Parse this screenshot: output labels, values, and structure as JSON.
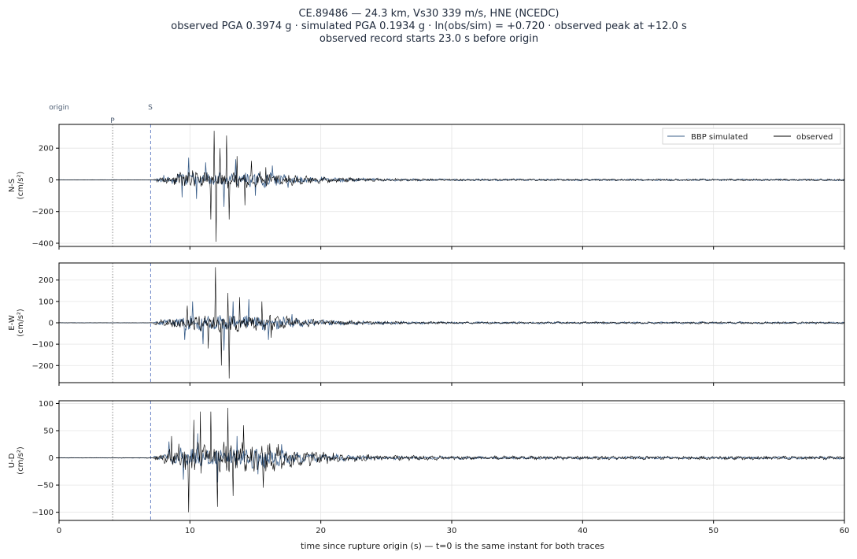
{
  "header": {
    "title_line1": "CE.89486  —  24.3 km, Vs30 339 m/s, HNE (NCEDC)",
    "title_line2": "observed PGA 0.3974 g   ·   simulated PGA 0.1934 g   ·   ln(obs/sim) = +0.720   ·   observed peak at +12.0 s",
    "title_line3": "observed record starts 23.0 s before origin"
  },
  "markers": {
    "origin_label": "origin",
    "p_label": "P",
    "s_label": "S",
    "origin_t": 0,
    "p_t": 4.1,
    "s_t": 7.0
  },
  "legend": {
    "simulated": "BBP simulated",
    "observed": "observed"
  },
  "colors": {
    "simulated": "#3b5f8a",
    "observed": "#000000",
    "p_line": "#888888",
    "s_line": "#6d86c7",
    "grid": "#e4e4e4"
  },
  "xaxis": {
    "label": "time since rupture origin (s)   —   t=0 is the same instant for both traces"
  },
  "chart_data": [
    {
      "type": "line",
      "component": "N-S",
      "ylabel": "N-S\n(cm/s²)",
      "xlim": [
        0,
        60
      ],
      "ylim": [
        -420,
        350
      ],
      "yticks": [
        200,
        0,
        -200,
        -400
      ],
      "xticks": [
        0,
        10,
        20,
        30,
        40,
        50,
        60
      ],
      "series": [
        {
          "name": "BBP simulated",
          "peaks": [
            [
              8,
              30
            ],
            [
              9.4,
              -110
            ],
            [
              9.9,
              140
            ],
            [
              10.5,
              -120
            ],
            [
              11.2,
              110
            ],
            [
              12.6,
              -170
            ],
            [
              13.5,
              130
            ],
            [
              15,
              -100
            ],
            [
              16.3,
              90
            ],
            [
              17.5,
              -50
            ]
          ],
          "noise_scale": 35
        },
        {
          "name": "observed",
          "peaks": [
            [
              10.2,
              60
            ],
            [
              11.6,
              -250
            ],
            [
              11.85,
              310
            ],
            [
              12.0,
              -390
            ],
            [
              12.3,
              200
            ],
            [
              12.8,
              280
            ],
            [
              13.0,
              -250
            ],
            [
              13.6,
              150
            ],
            [
              14.2,
              -160
            ],
            [
              14.7,
              120
            ],
            [
              15.8,
              80
            ]
          ],
          "noise_scale": 40
        }
      ]
    },
    {
      "type": "line",
      "component": "E-W",
      "ylabel": "E-W\n(cm/s²)",
      "xlim": [
        0,
        60
      ],
      "ylim": [
        -280,
        280
      ],
      "yticks": [
        200,
        100,
        0,
        -100,
        -200
      ],
      "xticks": [
        0,
        10,
        20,
        30,
        40,
        50,
        60
      ],
      "series": [
        {
          "name": "BBP simulated",
          "peaks": [
            [
              9.6,
              -80
            ],
            [
              10.2,
              100
            ],
            [
              11.0,
              -100
            ],
            [
              12.6,
              -130
            ],
            [
              13.3,
              100
            ],
            [
              14.5,
              110
            ],
            [
              16.0,
              -80
            ],
            [
              17.8,
              40
            ]
          ],
          "noise_scale": 28
        },
        {
          "name": "observed",
          "peaks": [
            [
              9.8,
              80
            ],
            [
              11.4,
              -120
            ],
            [
              11.95,
              260
            ],
            [
              12.4,
              -200
            ],
            [
              12.9,
              140
            ],
            [
              13.0,
              -260
            ],
            [
              13.8,
              120
            ],
            [
              15.5,
              100
            ],
            [
              16.2,
              -70
            ]
          ],
          "noise_scale": 32
        }
      ]
    },
    {
      "type": "line",
      "component": "U-D",
      "ylabel": "U-D\n(cm/s²)",
      "xlim": [
        0,
        60
      ],
      "ylim": [
        -115,
        105
      ],
      "yticks": [
        100,
        50,
        0,
        -50,
        -100
      ],
      "xticks": [
        0,
        10,
        20,
        30,
        40,
        50,
        60
      ],
      "series": [
        {
          "name": "BBP simulated",
          "peaks": [
            [
              8.4,
              30
            ],
            [
              9.5,
              -40
            ],
            [
              10.6,
              45
            ],
            [
              12.1,
              -45
            ],
            [
              13.6,
              40
            ],
            [
              15.2,
              -30
            ],
            [
              17.0,
              25
            ]
          ],
          "noise_scale": 14
        },
        {
          "name": "observed",
          "peaks": [
            [
              8.6,
              40
            ],
            [
              9.9,
              -100
            ],
            [
              10.3,
              70
            ],
            [
              10.8,
              85
            ],
            [
              11.6,
              85
            ],
            [
              12.1,
              -90
            ],
            [
              12.9,
              92
            ],
            [
              13.3,
              -70
            ],
            [
              14.1,
              60
            ],
            [
              15.6,
              -55
            ]
          ],
          "noise_scale": 22
        }
      ]
    }
  ]
}
